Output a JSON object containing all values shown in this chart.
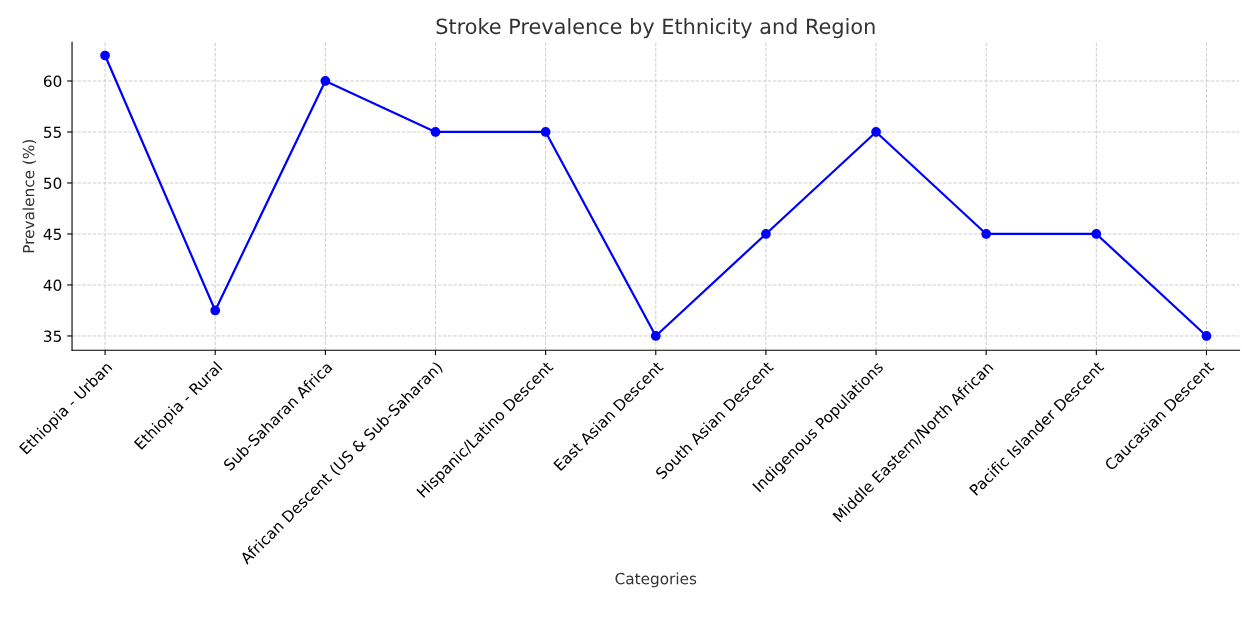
{
  "chart_data": {
    "type": "line",
    "title": "Stroke Prevalence by Ethnicity and Region",
    "xlabel": "Categories",
    "ylabel": "Prevalence (%)",
    "categories": [
      "Ethiopia - Urban",
      "Ethiopia - Rural",
      "Sub-Saharan Africa",
      "African Descent (US & Sub-Saharan)",
      "Hispanic/Latino Descent",
      "East Asian Descent",
      "South Asian Descent",
      "Indigenous Populations",
      "Middle Eastern/North African",
      "Pacific Islander Descent",
      "Caucasian Descent"
    ],
    "series": [
      {
        "color": "#0000ff",
        "values": [
          62.5,
          37.5,
          60,
          55,
          55,
          35,
          45,
          55,
          45,
          45,
          35
        ]
      }
    ],
    "ylim": [
      33.6,
      63.8
    ],
    "yticks": [
      35,
      40,
      45,
      50,
      55,
      60
    ],
    "grid": true,
    "marker": "circle",
    "line_style": "solid"
  }
}
